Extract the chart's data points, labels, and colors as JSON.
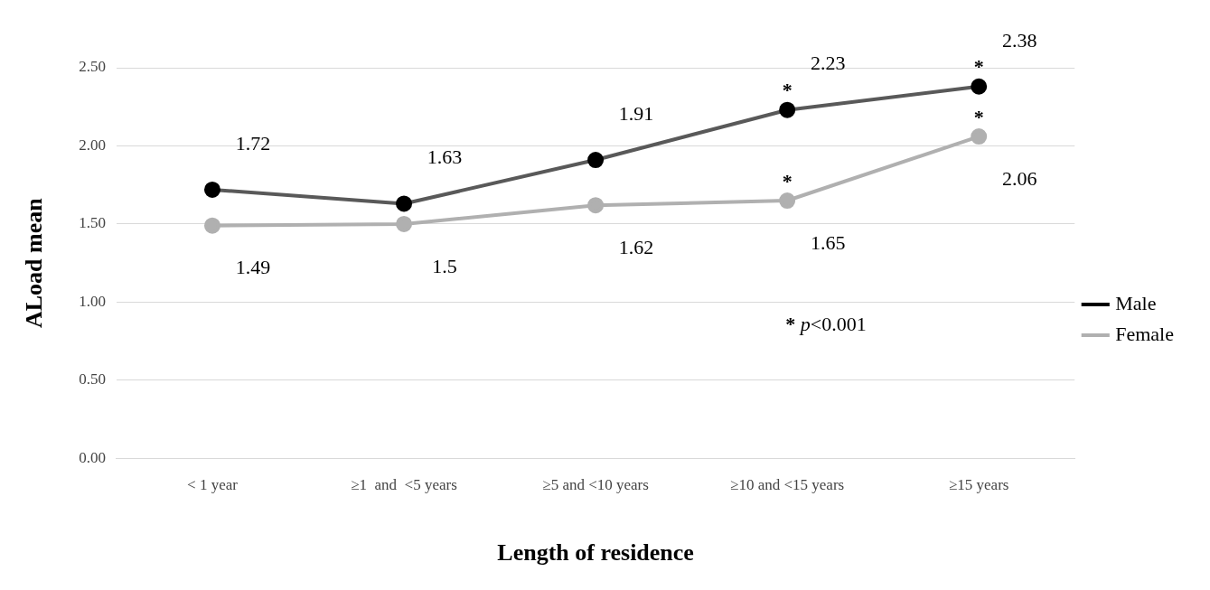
{
  "chart_data": {
    "type": "line",
    "xlabel": "Length of residence",
    "ylabel": "ALoad mean",
    "categories": [
      "< 1 year",
      "≥1  and  <5 years",
      "≥5 and <10 years",
      "≥10 and <15 years",
      "≥15 years"
    ],
    "series": [
      {
        "name": "Male",
        "color": "#595959",
        "values": [
          1.72,
          1.63,
          1.91,
          2.23,
          2.38
        ]
      },
      {
        "name": "Female",
        "color": "#b0b0b0",
        "values": [
          1.49,
          1.5,
          1.62,
          1.65,
          2.06
        ]
      }
    ],
    "ylim": [
      0,
      2.5
    ],
    "yticks": [
      {
        "value": 0,
        "label": "0.00"
      },
      {
        "value": 0.5,
        "label": "0.50"
      },
      {
        "value": 1,
        "label": "1.00"
      },
      {
        "value": 1.5,
        "label": "1.50"
      },
      {
        "value": 2,
        "label": "2.00"
      },
      {
        "value": 2.5,
        "label": "2.50"
      }
    ],
    "grid": "y",
    "legend": "right",
    "marker": "circle",
    "line_style": "solid",
    "data_labels": true,
    "annotations": [
      {
        "text": "*",
        "x": "≥10 and <15 years",
        "y": 2.23
      },
      {
        "text": "*",
        "x": "≥15 years",
        "y": 2.38
      },
      {
        "text": "*",
        "x": "≥10 and <15 years",
        "y": 1.65
      },
      {
        "text": "*",
        "x": "≥15 years",
        "y": 2.06
      },
      "* p<0.001"
    ]
  }
}
